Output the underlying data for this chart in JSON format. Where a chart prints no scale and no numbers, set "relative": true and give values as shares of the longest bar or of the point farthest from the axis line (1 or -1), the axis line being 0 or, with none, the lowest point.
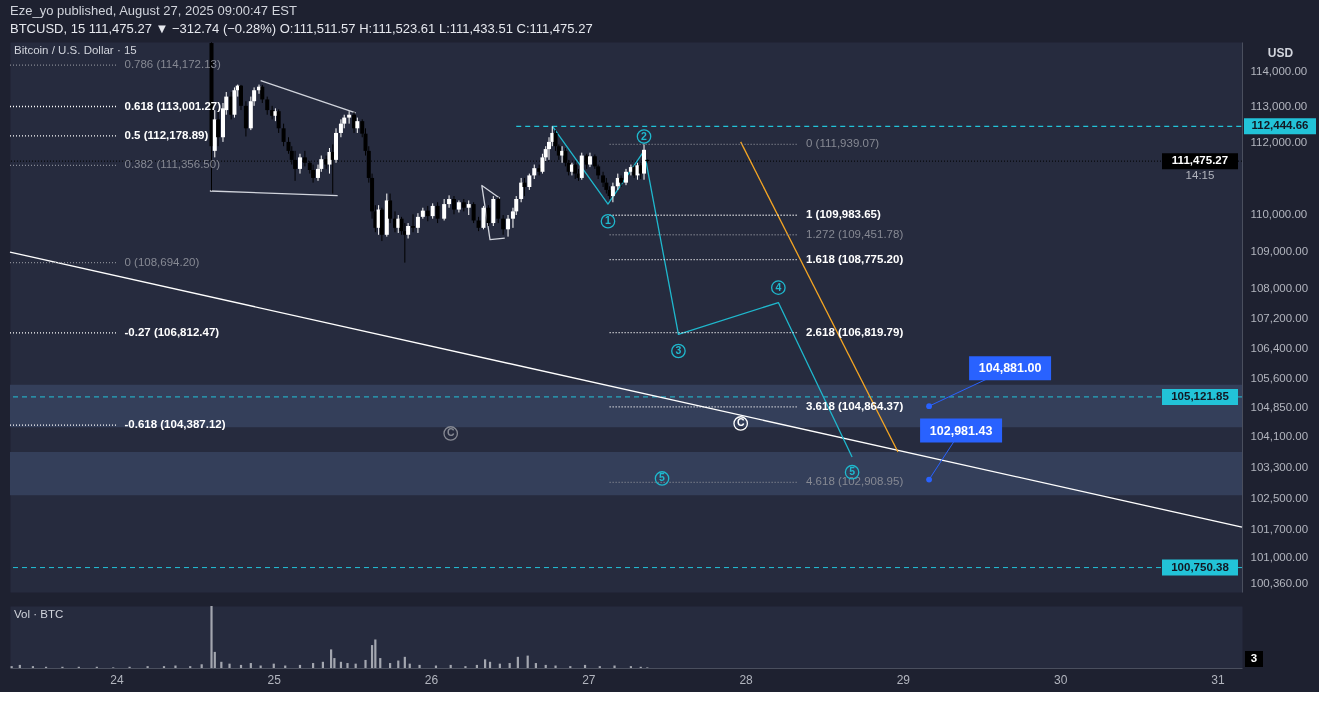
{
  "chart_data": [
    {
      "type": "candlestick",
      "title": "Eze_yo published, August 27, 2025 09:00:47 EST",
      "subtitle": "BTCUSD, 15 111,475.27 ▼ −312.74 (−0.28%) O:111,511.57 H:111,523.61 L:111,433.51 C:111,475.27",
      "ylabel": "USD",
      "annotations": [
        "Bitcoin / U.S. Dollar · 15",
        "14:15"
      ],
      "x": [
        "2025-08-24T14:30",
        "2025-08-24T15:00",
        "2025-08-24T15:30",
        "2025-08-24T16:15",
        "2025-08-24T16:45",
        "2025-08-24T17:30",
        "2025-08-24T18:00",
        "2025-08-24T18:30",
        "2025-08-24T19:00",
        "2025-08-24T19:45",
        "2025-08-24T20:30",
        "2025-08-24T21:00",
        "2025-08-24T21:45",
        "2025-08-24T22:15",
        "2025-08-24T23:00",
        "2025-08-24T23:45",
        "2025-08-25T00:15",
        "2025-08-25T00:45",
        "2025-08-25T01:30",
        "2025-08-25T02:15",
        "2025-08-25T02:45",
        "2025-08-25T03:15",
        "2025-08-25T04:00",
        "2025-08-25T04:45",
        "2025-08-25T05:30",
        "2025-08-25T06:00",
        "2025-08-25T06:45",
        "2025-08-25T07:15",
        "2025-08-25T08:00",
        "2025-08-25T08:30",
        "2025-08-25T09:00",
        "2025-08-25T09:30",
        "2025-08-25T10:15",
        "2025-08-25T10:45",
        "2025-08-25T11:30",
        "2025-08-25T12:15",
        "2025-08-25T12:45",
        "2025-08-25T13:30",
        "2025-08-25T14:00",
        "2025-08-25T14:30",
        "2025-08-25T15:00",
        "2025-08-25T15:30",
        "2025-08-25T16:00",
        "2025-08-25T16:30",
        "2025-08-25T17:15",
        "2025-08-25T17:45",
        "2025-08-25T18:30",
        "2025-08-25T19:00",
        "2025-08-25T19:30",
        "2025-08-25T20:00",
        "2025-08-25T20:30",
        "2025-08-25T21:15",
        "2025-08-25T22:00",
        "2025-08-25T22:45",
        "2025-08-25T23:30",
        "2025-08-26T00:15",
        "2025-08-26T01:00",
        "2025-08-26T02:00",
        "2025-08-26T02:45",
        "2025-08-26T03:30",
        "2025-08-26T04:15",
        "2025-08-26T05:00",
        "2025-08-26T05:45",
        "2025-08-26T06:30",
        "2025-08-26T07:15",
        "2025-08-26T08:00",
        "2025-08-26T08:45",
        "2025-08-26T09:30",
        "2025-08-26T10:15",
        "2025-08-26T11:00",
        "2025-08-26T11:45",
        "2025-08-26T12:30",
        "2025-08-26T13:00",
        "2025-08-26T13:45",
        "2025-08-26T14:15",
        "2025-08-26T15:00",
        "2025-08-26T15:45",
        "2025-08-26T16:30",
        "2025-08-26T17:00",
        "2025-08-26T17:30",
        "2025-08-26T18:00",
        "2025-08-26T18:30",
        "2025-08-26T19:00",
        "2025-08-26T19:30",
        "2025-08-26T20:00",
        "2025-08-26T20:30",
        "2025-08-26T21:00",
        "2025-08-26T21:30",
        "2025-08-26T22:00",
        "2025-08-26T22:30",
        "2025-08-26T23:00",
        "2025-08-26T23:45",
        "2025-08-27T00:15",
        "2025-08-27T01:00",
        "2025-08-27T01:30",
        "2025-08-27T02:15",
        "2025-08-27T02:45",
        "2025-08-27T03:15",
        "2025-08-27T03:45",
        "2025-08-27T04:30",
        "2025-08-27T05:00",
        "2025-08-27T05:45",
        "2025-08-27T06:30",
        "2025-08-27T07:00",
        "2025-08-27T07:30",
        "2025-08-27T08:00",
        "2025-08-27T08:30",
        "2025-08-27T09:00"
      ],
      "ohlc": [
        [
          114800,
          114820,
          110660,
          111890
        ],
        [
          111760,
          112900,
          111580,
          112640
        ],
        [
          112640,
          112950,
          111890,
          112140
        ],
        [
          112140,
          113100,
          112010,
          112950
        ],
        [
          112900,
          113410,
          112770,
          113280
        ],
        [
          113280,
          113410,
          112640,
          112770
        ],
        [
          112770,
          113540,
          112690,
          113460
        ],
        [
          113460,
          113620,
          113280,
          113590
        ],
        [
          113590,
          113610,
          112900,
          113020
        ],
        [
          113020,
          113150,
          112160,
          112390
        ],
        [
          112390,
          113280,
          112340,
          113150
        ],
        [
          113150,
          113540,
          113020,
          113460
        ],
        [
          113460,
          113620,
          113360,
          113560
        ],
        [
          113560,
          113610,
          113100,
          113200
        ],
        [
          113200,
          113280,
          112770,
          112900
        ],
        [
          112900,
          113020,
          112640,
          112740
        ],
        [
          112740,
          112950,
          112590,
          112870
        ],
        [
          112870,
          112920,
          112260,
          112390
        ],
        [
          112390,
          112520,
          111890,
          112010
        ],
        [
          112010,
          112140,
          111680,
          111760
        ],
        [
          111760,
          111890,
          111380,
          111510
        ],
        [
          111510,
          111760,
          110930,
          111260
        ],
        [
          111260,
          111680,
          111130,
          111580
        ],
        [
          111580,
          111760,
          111330,
          111430
        ],
        [
          111430,
          111480,
          111130,
          111230
        ],
        [
          111230,
          111380,
          110880,
          111010
        ],
        [
          111010,
          111380,
          110930,
          111260
        ],
        [
          111260,
          111630,
          111180,
          111530
        ],
        [
          111530,
          111630,
          111260,
          111380
        ],
        [
          111380,
          111840,
          111130,
          111730
        ],
        [
          111730,
          111940,
          110580,
          111510
        ],
        [
          111510,
          112390,
          111430,
          112260
        ],
        [
          112260,
          112640,
          112140,
          112520
        ],
        [
          112520,
          112770,
          112390,
          112690
        ],
        [
          112690,
          112870,
          112520,
          112770
        ],
        [
          112770,
          112850,
          112260,
          112390
        ],
        [
          112390,
          112690,
          112260,
          112590
        ],
        [
          112590,
          112640,
          112140,
          112240
        ],
        [
          112240,
          112390,
          111630,
          111760
        ],
        [
          111760,
          111890,
          110880,
          111010
        ],
        [
          111010,
          111130,
          109890,
          110090
        ],
        [
          110090,
          110260,
          109520,
          109640
        ],
        [
          109640,
          110260,
          109450,
          110140
        ],
        [
          110140,
          110190,
          109280,
          109450
        ],
        [
          109450,
          110580,
          109400,
          110390
        ],
        [
          110390,
          110580,
          109770,
          109890
        ],
        [
          109890,
          110090,
          109520,
          109640
        ],
        [
          109640,
          109990,
          109500,
          109890
        ],
        [
          109890,
          109940,
          109450,
          109550
        ],
        [
          109550,
          109770,
          108694.2,
          109450
        ],
        [
          109450,
          109770,
          109350,
          109690
        ],
        [
          109690,
          110010,
          109520,
          109640
        ],
        [
          109640,
          110040,
          109500,
          109940
        ],
        [
          109940,
          110190,
          109890,
          110110
        ],
        [
          110110,
          110240,
          109820,
          109960
        ],
        [
          109960,
          110310,
          109890,
          110240
        ],
        [
          110240,
          110340,
          109770,
          109890
        ],
        [
          109890,
          110430,
          109840,
          110290
        ],
        [
          110290,
          110530,
          110190,
          110430
        ],
        [
          110430,
          110510,
          110010,
          110140
        ],
        [
          110140,
          110390,
          110060,
          110340
        ],
        [
          110340,
          110430,
          110090,
          110190
        ],
        [
          110190,
          110390,
          109990,
          110290
        ],
        [
          110290,
          110340,
          109770,
          109840
        ],
        [
          109840,
          109940,
          109550,
          109640
        ],
        [
          109640,
          110240,
          109600,
          110190
        ],
        [
          110190,
          110260,
          109690,
          109770
        ],
        [
          109770,
          110510,
          109690,
          110430
        ],
        [
          110430,
          110480,
          109770,
          109890
        ],
        [
          109890,
          109990,
          109450,
          109600
        ],
        [
          109600,
          109990,
          109400,
          109890
        ],
        [
          109890,
          110190,
          109640,
          110090
        ],
        [
          110090,
          110510,
          109990,
          110430
        ],
        [
          110430,
          111010,
          110340,
          110880
        ],
        [
          110880,
          111010,
          110510,
          110760
        ],
        [
          110760,
          111130,
          110680,
          111080
        ],
        [
          111080,
          111380,
          110980,
          111280
        ],
        [
          111280,
          111380,
          111080,
          111180
        ],
        [
          111180,
          111680,
          111130,
          111580
        ],
        [
          111580,
          111890,
          111480,
          111810
        ],
        [
          111810,
          112140,
          111510,
          112010
        ],
        [
          112010,
          112444.66,
          111890,
          112260
        ],
        [
          112260,
          112340,
          111760,
          111890
        ],
        [
          111890,
          111940,
          111510,
          111630
        ],
        [
          111630,
          111890,
          111430,
          111760
        ],
        [
          111760,
          111840,
          111330,
          111430
        ],
        [
          111430,
          111510,
          111080,
          111180
        ],
        [
          111180,
          111430,
          111080,
          111380
        ],
        [
          111380,
          111480,
          110980,
          111130
        ],
        [
          111130,
          111260,
          110930,
          111010
        ],
        [
          111010,
          111710,
          110960,
          111630
        ],
        [
          111630,
          111680,
          111260,
          111380
        ],
        [
          111380,
          111710,
          111310,
          111610
        ],
        [
          111610,
          111660,
          111260,
          111330
        ],
        [
          111330,
          111380,
          110980,
          111080
        ],
        [
          111080,
          111180,
          110760,
          110880
        ],
        [
          110880,
          111010,
          110580,
          110680
        ],
        [
          110680,
          110780,
          110430,
          110510
        ],
        [
          110510,
          110880,
          110340,
          110780
        ],
        [
          110780,
          111130,
          110680,
          111010
        ],
        [
          111010,
          111080,
          110760,
          110880
        ],
        [
          110880,
          111260,
          110810,
          111180
        ],
        [
          111180,
          111380,
          111080,
          111310
        ],
        [
          111310,
          111360,
          111010,
          111080
        ],
        [
          111080,
          111430,
          110960,
          111360
        ],
        [
          111360,
          111430,
          110980,
          111130
        ],
        [
          111130,
          111939.07,
          110960,
          111790
        ],
        [
          111511.57,
          111523.61,
          111433.51,
          111475.27
        ]
      ],
      "colors": [
        "#000000",
        "#ffffff",
        "#000000",
        "#ffffff",
        "#ffffff",
        "#000000",
        "#ffffff",
        "#ffffff",
        "#000000",
        "#000000",
        "#ffffff",
        "#ffffff",
        "#ffffff",
        "#000000",
        "#000000",
        "#000000",
        "#ffffff",
        "#000000",
        "#000000",
        "#000000",
        "#000000",
        "#000000",
        "#ffffff",
        "#000000",
        "#000000",
        "#000000",
        "#ffffff",
        "#ffffff",
        "#000000",
        "#ffffff",
        "#000000",
        "#ffffff",
        "#ffffff",
        "#ffffff",
        "#ffffff",
        "#000000",
        "#ffffff",
        "#000000",
        "#000000",
        "#000000",
        "#000000",
        "#000000",
        "#ffffff",
        "#000000",
        "#ffffff",
        "#000000",
        "#000000",
        "#ffffff",
        "#000000",
        "#000000",
        "#ffffff",
        "#000000",
        "#ffffff",
        "#ffffff",
        "#000000",
        "#ffffff",
        "#000000",
        "#ffffff",
        "#ffffff",
        "#000000",
        "#ffffff",
        "#000000",
        "#ffffff",
        "#000000",
        "#000000",
        "#ffffff",
        "#000000",
        "#ffffff",
        "#000000",
        "#000000",
        "#ffffff",
        "#ffffff",
        "#ffffff",
        "#ffffff",
        "#000000",
        "#ffffff",
        "#ffffff",
        "#000000",
        "#ffffff",
        "#ffffff",
        "#ffffff",
        "#ffffff",
        "#000000",
        "#000000",
        "#ffffff",
        "#000000",
        "#000000",
        "#ffffff",
        "#000000",
        "#000000",
        "#ffffff",
        "#000000",
        "#ffffff",
        "#000000",
        "#000000",
        "#000000",
        "#000000",
        "#000000",
        "#ffffff",
        "#ffffff",
        "#000000",
        "#ffffff",
        "#ffffff",
        "#000000",
        "#ffffff",
        "#000000",
        "#ffffff",
        "#000000"
      ],
      "series": [
        {
          "type": "line",
          "color": "#ffffff",
          "x": [
            "2025-08-23T07:45",
            "2025-08-31T03:45"
          ],
          "values": [
            108980,
            101770
          ]
        },
        {
          "type": "line",
          "color": "#d1d4dc",
          "x": [
            "2025-08-24T22:00",
            "2025-08-25T12:30"
          ],
          "values": [
            113730,
            112820
          ]
        },
        {
          "type": "line",
          "color": "#d1d4dc",
          "x": [
            "2025-08-24T14:15",
            "2025-08-25T09:45"
          ],
          "values": [
            110650,
            110520
          ]
        },
        {
          "type": "line",
          "color": "#d1d4dc",
          "x": [
            "2025-08-26T10:30",
            "2025-08-26T07:45",
            "2025-08-26T09:00",
            "2025-08-26T11:15"
          ],
          "values": [
            110450,
            110800,
            109320,
            109360
          ]
        },
        {
          "type": "line",
          "color": "#1fb8cd",
          "x": [
            "2025-08-26T18:30",
            "2025-08-27T03:00",
            "2025-08-27T08:30",
            "2025-08-27T13:45",
            "2025-08-28T05:00",
            "2025-08-28T16:15"
          ],
          "values": [
            112450,
            110290,
            111760,
            106770,
            107620,
            103560
          ]
        },
        {
          "type": "line",
          "color": "#f5a623",
          "x": [
            "2025-08-27T23:15",
            "2025-08-28T23:15"
          ],
          "values": [
            112010,
            103690
          ]
        },
        {
          "type": "line",
          "name": "112,444.66",
          "color": "#22c3d8",
          "line_style": "dashed",
          "x": [
            "2025-08-26T13:00",
            "2025-08-31T03:45"
          ],
          "values": [
            112444.66,
            112444.66
          ]
        },
        {
          "type": "line",
          "name": "0.786 (114,172.13)",
          "color": "#868993",
          "line_style": "dotted",
          "x": [
            "2025-08-23T07:45",
            "2025-08-24T00:00"
          ],
          "values": [
            114172.13,
            114172.13
          ]
        },
        {
          "type": "line",
          "name": "0.618 (113,001.27)",
          "color": "#ffffff",
          "line_style": "dotted",
          "x": [
            "2025-08-23T07:45",
            "2025-08-24T00:00"
          ],
          "values": [
            113001.27,
            113001.27
          ]
        },
        {
          "type": "line",
          "name": "0.5 (112,178.89)",
          "color": "#ffffff",
          "line_style": "dotted",
          "x": [
            "2025-08-23T07:45",
            "2025-08-24T00:00"
          ],
          "values": [
            112178.89,
            112178.89
          ]
        },
        {
          "type": "line",
          "name": "0.382 (111,356.50)",
          "color": "#868993",
          "line_style": "dotted",
          "x": [
            "2025-08-23T07:45",
            "2025-08-24T00:00"
          ],
          "values": [
            111356.5,
            111356.5
          ]
        },
        {
          "type": "line",
          "name": "0 (108,694.20)",
          "color": "#868993",
          "line_style": "dotted",
          "x": [
            "2025-08-23T07:45",
            "2025-08-24T00:00"
          ],
          "values": [
            108694.2,
            108694.2
          ]
        },
        {
          "type": "line",
          "name": "-0.27 (106,812.47)",
          "color": "#ffffff",
          "line_style": "dotted",
          "x": [
            "2025-08-23T07:45",
            "2025-08-24T00:00"
          ],
          "values": [
            106812.47,
            106812.47
          ]
        },
        {
          "type": "line",
          "name": "-0.618 (104,387.12)",
          "color": "#ffffff",
          "line_style": "dotted",
          "x": [
            "2025-08-23T07:45",
            "2025-08-24T00:00"
          ],
          "values": [
            104387.12,
            104387.12
          ]
        },
        {
          "type": "line",
          "name": "0 (111,939.07)",
          "color": "#868993",
          "line_style": "dotted",
          "x": [
            "2025-08-27T03:15",
            "2025-08-28T08:00"
          ],
          "values": [
            111939.07,
            111939.07
          ]
        },
        {
          "type": "line",
          "name": "1 (109,983.65)",
          "color": "#ffffff",
          "line_style": "dotted",
          "x": [
            "2025-08-27T03:15",
            "2025-08-28T08:00"
          ],
          "values": [
            109983.65,
            109983.65
          ]
        },
        {
          "type": "line",
          "name": "1.272 (109,451.78)",
          "color": "#868993",
          "line_style": "dotted",
          "x": [
            "2025-08-27T03:15",
            "2025-08-28T08:00"
          ],
          "values": [
            109451.78,
            109451.78
          ]
        },
        {
          "type": "line",
          "name": "1.618 (108,775.20)",
          "color": "#ffffff",
          "line_style": "dotted",
          "x": [
            "2025-08-27T03:15",
            "2025-08-28T08:00"
          ],
          "values": [
            108775.2,
            108775.2
          ]
        },
        {
          "type": "line",
          "name": "2.618 (106,819.79)",
          "color": "#ffffff",
          "line_style": "dotted",
          "x": [
            "2025-08-27T03:15",
            "2025-08-28T08:00"
          ],
          "values": [
            106819.79,
            106819.79
          ]
        },
        {
          "type": "line",
          "name": "3.618 (104,864.37)",
          "color": "#ffffff",
          "line_style": "dotted",
          "x": [
            "2025-08-27T03:15",
            "2025-08-28T08:00"
          ],
          "values": [
            104864.37,
            104864.37
          ]
        },
        {
          "type": "line",
          "name": "4.618 (102,908.95)",
          "color": "#868993",
          "line_style": "dotted",
          "x": [
            "2025-08-27T03:15",
            "2025-08-28T08:00"
          ],
          "values": [
            102908.95,
            102908.95
          ]
        },
        {
          "type": "scatter",
          "name": "1",
          "color": "#1fb8cd",
          "marker": "circle",
          "x": [
            "2025-08-27T03:00"
          ],
          "values": [
            109820
          ]
        },
        {
          "type": "scatter",
          "name": "2",
          "color": "#1fb8cd",
          "marker": "circle",
          "x": [
            "2025-08-27T08:30"
          ],
          "values": [
            112160
          ]
        },
        {
          "type": "scatter",
          "name": "3",
          "color": "#1fb8cd",
          "marker": "circle",
          "x": [
            "2025-08-27T13:45"
          ],
          "values": [
            106330
          ]
        },
        {
          "type": "scatter",
          "name": "4",
          "color": "#1fb8cd",
          "marker": "circle",
          "x": [
            "2025-08-28T05:00"
          ],
          "values": [
            108020
          ]
        },
        {
          "type": "scatter",
          "name": "5",
          "color": "#1fb8cd",
          "marker": "circle",
          "x": [
            "2025-08-28T16:15"
          ],
          "values": [
            103170
          ]
        },
        {
          "type": "scatter",
          "name": "5",
          "color": "#1fb8cd",
          "marker": "circle",
          "x": [
            "2025-08-27T11:15"
          ],
          "values": [
            103010
          ]
        },
        {
          "type": "scatter",
          "name": "C",
          "color": "#ffffff",
          "marker": "circle",
          "x": [
            "2025-08-27T23:15"
          ],
          "values": [
            104430
          ]
        },
        {
          "type": "scatter",
          "name": "C",
          "color": "#868993",
          "marker": "circle",
          "x": [
            "2025-08-26T03:00"
          ],
          "values": [
            104170
          ]
        },
        {
          "type": "scatter",
          "color": "#2962ff",
          "marker": "circle",
          "x": [
            "2025-08-29T04:00",
            "2025-08-29T04:00"
          ],
          "values": [
            104881.0,
            102981.43
          ],
          "value_labels": [
            "104,881.00",
            "102,981.43"
          ]
        }
      ],
      "ref_lines": [
        {
          "axis": "y",
          "value": 111475.27,
          "label": "111,475.27",
          "color": "#000000",
          "line_style": "dotted"
        },
        {
          "axis": "y",
          "value": 105121.85,
          "label": "105,121.85",
          "color": "#22c3d8",
          "line_style": "dashed"
        },
        {
          "axis": "y",
          "value": 100750.38,
          "label": "100,750.38",
          "color": "#22c3d8",
          "line_style": "dashed"
        }
      ],
      "bands": [
        {
          "axis": "y",
          "from": 104330,
          "to": 105440,
          "color": "#343f5a"
        },
        {
          "axis": "y",
          "from": 102580,
          "to": 103690,
          "color": "#343f5a"
        }
      ],
      "xlim": [
        "2025-08-23T07:45",
        "2025-08-31T03:45"
      ],
      "ylim": [
        100140,
        114830
      ],
      "log": "y",
      "yticks": [
        {
          "value": 114000,
          "label": "114,000.00"
        },
        {
          "value": 113000,
          "label": "113,000.00"
        },
        {
          "value": 112000,
          "label": "112,000.00"
        },
        {
          "value": 110000,
          "label": "110,000.00"
        },
        {
          "value": 109000,
          "label": "109,000.00"
        },
        {
          "value": 108000,
          "label": "108,000.00"
        },
        {
          "value": 107200,
          "label": "107,200.00"
        },
        {
          "value": 106400,
          "label": "106,400.00"
        },
        {
          "value": 105600,
          "label": "105,600.00"
        },
        {
          "value": 104850,
          "label": "104,850.00"
        },
        {
          "value": 104100,
          "label": "104,100.00"
        },
        {
          "value": 103300,
          "label": "103,300.00"
        },
        {
          "value": 102500,
          "label": "102,500.00"
        },
        {
          "value": 101700,
          "label": "101,700.00"
        },
        {
          "value": 101000,
          "label": "101,000.00"
        },
        {
          "value": 100360,
          "label": "100,360.00"
        }
      ],
      "tick_labels": "y"
    },
    {
      "type": "bar",
      "title": "Vol · BTC",
      "relative": true,
      "color": "#a3a6af",
      "annotations": [
        "3"
      ],
      "x": [
        "2025-08-23T08:00",
        "2025-08-23T09:15",
        "2025-08-23T11:15",
        "2025-08-23T13:15",
        "2025-08-23T15:45",
        "2025-08-23T18:15",
        "2025-08-23T21:00",
        "2025-08-23T23:30",
        "2025-08-24T02:00",
        "2025-08-24T04:45",
        "2025-08-24T07:15",
        "2025-08-24T09:00",
        "2025-08-24T11:15",
        "2025-08-24T13:00",
        "2025-08-24T14:30",
        "2025-08-24T15:00",
        "2025-08-24T16:00",
        "2025-08-24T17:15",
        "2025-08-24T19:00",
        "2025-08-24T20:30",
        "2025-08-24T22:00",
        "2025-08-25T00:00",
        "2025-08-25T01:45",
        "2025-08-25T04:00",
        "2025-08-25T06:00",
        "2025-08-25T07:30",
        "2025-08-25T08:45",
        "2025-08-25T09:15",
        "2025-08-25T10:15",
        "2025-08-25T11:15",
        "2025-08-25T12:30",
        "2025-08-25T14:00",
        "2025-08-25T15:00",
        "2025-08-25T15:30",
        "2025-08-25T16:15",
        "2025-08-25T17:45",
        "2025-08-25T19:00",
        "2025-08-25T20:00",
        "2025-08-25T20:45",
        "2025-08-25T22:15",
        "2025-08-26T00:45",
        "2025-08-26T03:00",
        "2025-08-26T05:15",
        "2025-08-26T07:00",
        "2025-08-26T08:15",
        "2025-08-26T09:00",
        "2025-08-26T10:30",
        "2025-08-26T12:00",
        "2025-08-26T13:15",
        "2025-08-26T14:45",
        "2025-08-26T16:00",
        "2025-08-26T17:30",
        "2025-08-26T19:00",
        "2025-08-26T21:15",
        "2025-08-26T23:30",
        "2025-08-27T01:45",
        "2025-08-27T04:00",
        "2025-08-27T06:30",
        "2025-08-27T08:00",
        "2025-08-27T09:00"
      ],
      "values": [
        0.03,
        0.05,
        0.03,
        0.02,
        0.02,
        0.02,
        0.02,
        0.01,
        0.02,
        0.03,
        0.03,
        0.04,
        0.03,
        0.06,
        1,
        0.26,
        0.1,
        0.07,
        0.05,
        0.08,
        0.04,
        0.07,
        0.04,
        0.05,
        0.08,
        0.1,
        0.3,
        0.16,
        0.1,
        0.08,
        0.07,
        0.13,
        0.37,
        0.46,
        0.16,
        0.08,
        0.12,
        0.18,
        0.07,
        0.05,
        0.04,
        0.05,
        0.03,
        0.05,
        0.14,
        0.1,
        0.07,
        0.08,
        0.18,
        0.2,
        0.08,
        0.05,
        0.04,
        0.03,
        0.05,
        0.03,
        0.04,
        0.03,
        0.02,
        0.01
      ],
      "xlim": [
        "2025-08-23T07:45",
        "2025-08-31T03:45"
      ],
      "xticks": [
        {
          "value": "2025-08-24",
          "label": "24"
        },
        {
          "value": "2025-08-25",
          "label": "25"
        },
        {
          "value": "2025-08-26",
          "label": "26"
        },
        {
          "value": "2025-08-27",
          "label": "27"
        },
        {
          "value": "2025-08-28",
          "label": "28"
        },
        {
          "value": "2025-08-29",
          "label": "29"
        },
        {
          "value": "2025-08-30",
          "label": "30"
        },
        {
          "value": "2025-08-31",
          "label": "31"
        }
      ],
      "tick_labels": "x"
    }
  ]
}
